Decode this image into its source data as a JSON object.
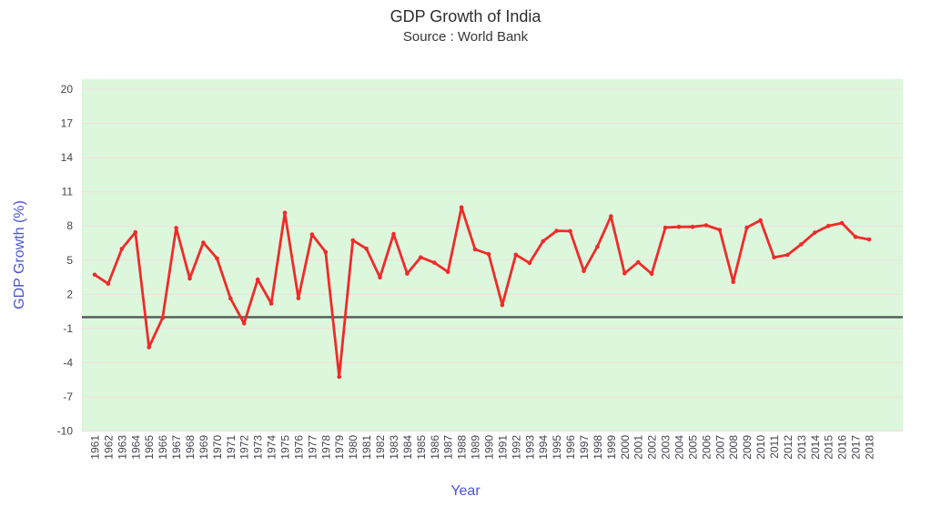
{
  "chart_data": {
    "type": "line",
    "title": "GDP Growth of India",
    "subtitle": "Source : World Bank",
    "xlabel": "Year",
    "ylabel": "GDP Growth (%)",
    "ylim": [
      -10,
      21
    ],
    "yticks": [
      20,
      17,
      14,
      11,
      8,
      5,
      2,
      -1,
      -4,
      -7,
      -10
    ],
    "grid": true,
    "legend": false,
    "zero_line": 0,
    "categories": [
      1961,
      1962,
      1963,
      1964,
      1965,
      1966,
      1967,
      1968,
      1969,
      1970,
      1971,
      1972,
      1973,
      1974,
      1975,
      1976,
      1977,
      1978,
      1979,
      1980,
      1981,
      1982,
      1983,
      1984,
      1985,
      1986,
      1987,
      1988,
      1989,
      1990,
      1991,
      1992,
      1993,
      1994,
      1995,
      1996,
      1997,
      1998,
      1999,
      2000,
      2001,
      2002,
      2003,
      2004,
      2005,
      2006,
      2007,
      2008,
      2009,
      2010,
      2011,
      2012,
      2013,
      2014,
      2015,
      2016,
      2017,
      2018
    ],
    "values": [
      3.72,
      2.93,
      5.99,
      7.45,
      -2.64,
      -0.06,
      7.83,
      3.39,
      6.54,
      5.16,
      1.64,
      -0.55,
      3.3,
      1.19,
      9.15,
      1.66,
      7.25,
      5.71,
      -5.24,
      6.74,
      6.01,
      3.48,
      7.29,
      3.82,
      5.25,
      4.78,
      3.97,
      9.63,
      5.95,
      5.53,
      1.06,
      5.48,
      4.75,
      6.66,
      7.57,
      7.55,
      4.05,
      6.18,
      8.85,
      3.84,
      4.82,
      3.8,
      7.86,
      7.92,
      7.92,
      8.06,
      7.66,
      3.09,
      7.86,
      8.5,
      5.24,
      5.46,
      6.39,
      7.41,
      8.0,
      8.26,
      7.04,
      6.81
    ],
    "colors": {
      "line": "#f12a2a",
      "marker": "#f12a2a",
      "plot_background": "#dcf7dc",
      "gridline": "#f0dfdc",
      "zero_line": "#4e5a51",
      "axis_title": "#4a55d2",
      "tick_label": "#43424e",
      "title_text": "#2e2e2e"
    }
  }
}
